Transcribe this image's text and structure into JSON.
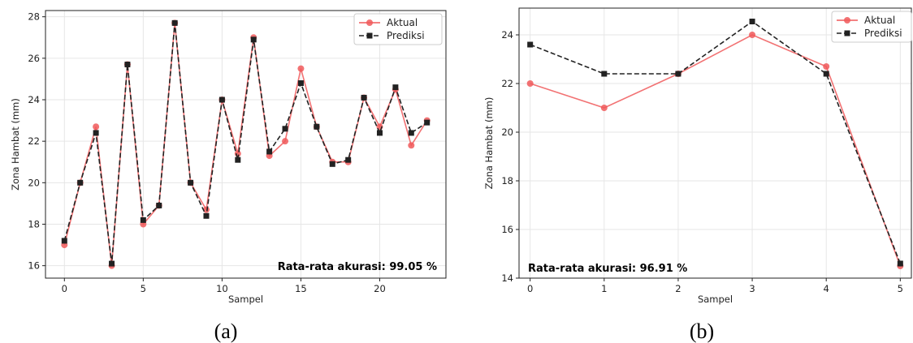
{
  "colors": {
    "actual": "#f0595a",
    "predicted": "#222222",
    "grid": "#e6e6e6"
  },
  "chart_data": [
    {
      "type": "line",
      "caption": "(a)",
      "xlabel": "Sampel",
      "ylabel": "Zona Hambat (mm)",
      "xlim": [
        -1.2,
        24.2
      ],
      "ylim": [
        15.4,
        28.3
      ],
      "xticks": [
        0,
        5,
        10,
        15,
        20
      ],
      "yticks": [
        16,
        18,
        20,
        22,
        24,
        26,
        28
      ],
      "grid": true,
      "legend_position": "top-right",
      "annotation": "Rata-rata akurasi: 99.05 %",
      "x": [
        0,
        1,
        2,
        3,
        4,
        5,
        6,
        7,
        8,
        9,
        10,
        11,
        12,
        13,
        14,
        15,
        16,
        17,
        18,
        19,
        20,
        21,
        22,
        23
      ],
      "series": [
        {
          "name": "Aktual",
          "style": "solid",
          "marker": "circle",
          "values": [
            17.0,
            20.0,
            22.7,
            16.0,
            25.7,
            18.0,
            18.9,
            27.7,
            20.0,
            18.7,
            24.0,
            21.4,
            27.0,
            21.3,
            22.0,
            25.5,
            22.7,
            21.0,
            21.0,
            24.1,
            22.7,
            24.5,
            21.8,
            23.0
          ]
        },
        {
          "name": "Prediksi",
          "style": "dashed",
          "marker": "square",
          "values": [
            17.2,
            20.0,
            22.4,
            16.1,
            25.7,
            18.2,
            18.9,
            27.7,
            20.0,
            18.4,
            24.0,
            21.1,
            26.9,
            21.5,
            22.6,
            24.8,
            22.7,
            20.9,
            21.1,
            24.1,
            22.4,
            24.6,
            22.4,
            22.9
          ]
        }
      ]
    },
    {
      "type": "line",
      "caption": "(b)",
      "xlabel": "Sampel",
      "ylabel": "Zona Hambat (mm)",
      "xlim": [
        -0.15,
        5.15
      ],
      "ylim": [
        14.0,
        25.1
      ],
      "xticks": [
        0,
        1,
        2,
        3,
        4,
        5
      ],
      "yticks": [
        14,
        16,
        18,
        20,
        22,
        24
      ],
      "grid": true,
      "legend_position": "top-right",
      "annotation": "Rata-rata akurasi: 96.91 %",
      "x": [
        0,
        1,
        2,
        3,
        4,
        5
      ],
      "series": [
        {
          "name": "Aktual",
          "style": "solid",
          "marker": "circle",
          "values": [
            22.0,
            21.0,
            22.4,
            24.0,
            22.7,
            14.5
          ]
        },
        {
          "name": "Prediksi",
          "style": "dashed",
          "marker": "square",
          "values": [
            23.6,
            22.4,
            22.4,
            24.55,
            22.4,
            14.6
          ]
        }
      ]
    }
  ]
}
